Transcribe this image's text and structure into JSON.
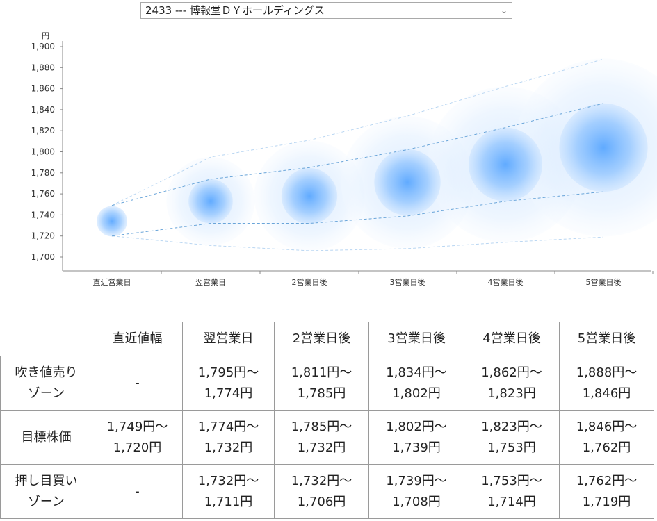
{
  "selector": {
    "value": "2433 --- 博報堂ＤＹホールディングス"
  },
  "chart_data": {
    "type": "bubble-range",
    "y_unit": "円",
    "ylim": [
      1700,
      1900
    ],
    "y_ticks": [
      "1,700",
      "1,720",
      "1,740",
      "1,760",
      "1,780",
      "1,800",
      "1,820",
      "1,840",
      "1,860",
      "1,880",
      "1,900"
    ],
    "categories": [
      "直近営業日",
      "翌営業日",
      "2営業日後",
      "3営業日後",
      "4営業日後",
      "5営業日後"
    ],
    "center": [
      1734,
      1753,
      1758,
      1771,
      1788,
      1804
    ],
    "upper_outer": [
      1749,
      1795,
      1811,
      1834,
      1862,
      1888
    ],
    "upper_inner": [
      1749,
      1774,
      1785,
      1802,
      1823,
      1846
    ],
    "lower_inner": [
      1720,
      1732,
      1732,
      1739,
      1753,
      1762
    ],
    "lower_outer": [
      1720,
      1711,
      1706,
      1708,
      1714,
      1719
    ]
  },
  "table": {
    "headers": [
      "",
      "直近値幅",
      "翌営業日",
      "2営業日後",
      "3営業日後",
      "4営業日後",
      "5営業日後"
    ],
    "rows": [
      {
        "label": [
          "吹き値売り",
          "ゾーン"
        ],
        "cells": [
          [
            "-"
          ],
          [
            "1,795円〜",
            "1,774円"
          ],
          [
            "1,811円〜",
            "1,785円"
          ],
          [
            "1,834円〜",
            "1,802円"
          ],
          [
            "1,862円〜",
            "1,823円"
          ],
          [
            "1,888円〜",
            "1,846円"
          ]
        ]
      },
      {
        "label": [
          "目標株価"
        ],
        "cells": [
          [
            "1,749円〜",
            "1,720円"
          ],
          [
            "1,774円〜",
            "1,732円"
          ],
          [
            "1,785円〜",
            "1,732円"
          ],
          [
            "1,802円〜",
            "1,739円"
          ],
          [
            "1,823円〜",
            "1,753円"
          ],
          [
            "1,846円〜",
            "1,762円"
          ]
        ]
      },
      {
        "label": [
          "押し目買い",
          "ゾーン"
        ],
        "cells": [
          [
            "-"
          ],
          [
            "1,732円〜",
            "1,711円"
          ],
          [
            "1,732円〜",
            "1,706円"
          ],
          [
            "1,739円〜",
            "1,708円"
          ],
          [
            "1,753円〜",
            "1,714円"
          ],
          [
            "1,762円〜",
            "1,719円"
          ]
        ]
      }
    ]
  }
}
